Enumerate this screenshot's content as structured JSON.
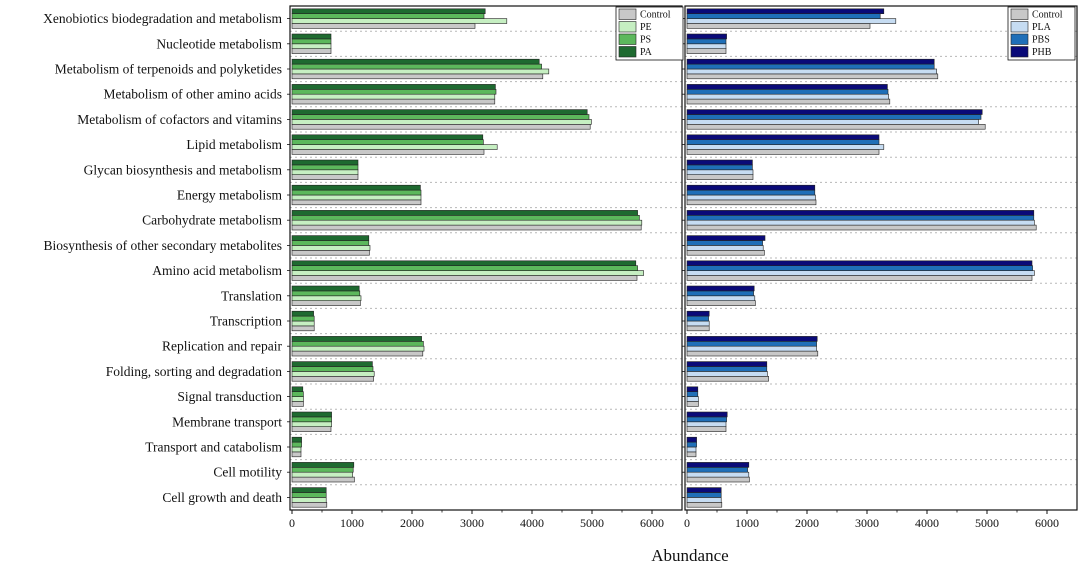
{
  "chart_data": [
    {
      "type": "bar",
      "orientation": "horizontal",
      "panel": "left",
      "categories": [
        "Xenobiotics biodegradation and metabolism",
        "Nucleotide metabolism",
        "Metabolism of terpenoids and polyketides",
        "Metabolism of other amino acids",
        "Metabolism of cofactors and vitamins",
        "Lipid metabolism",
        "Glycan biosynthesis and metabolism",
        "Energy metabolism",
        "Carbohydrate metabolism",
        "Biosynthesis of other secondary metabolites",
        "Amino acid metabolism",
        "Translation",
        "Transcription",
        "Replication and repair",
        "Folding, sorting and degradation",
        "Signal transduction",
        "Membrane transport",
        "Transport and catabolism",
        "Cell motility",
        "Cell growth and death"
      ],
      "series": [
        {
          "name": "Control",
          "color": "#c8c8c8",
          "values": [
            3050,
            650,
            4180,
            3380,
            4970,
            3200,
            1100,
            2150,
            5820,
            1290,
            5750,
            1140,
            370,
            2180,
            1360,
            190,
            650,
            150,
            1040,
            580
          ]
        },
        {
          "name": "PE",
          "color": "#c6efc2",
          "values": [
            3580,
            650,
            4280,
            3380,
            4990,
            3420,
            1100,
            2150,
            5830,
            1300,
            5860,
            1150,
            370,
            2200,
            1370,
            190,
            660,
            150,
            1010,
            570
          ]
        },
        {
          "name": "PS",
          "color": "#5cb85c",
          "values": [
            3200,
            650,
            4160,
            3400,
            4950,
            3190,
            1100,
            2150,
            5790,
            1280,
            5760,
            1130,
            370,
            2190,
            1350,
            190,
            660,
            160,
            1020,
            570
          ]
        },
        {
          "name": "PA",
          "color": "#1e6a30",
          "values": [
            3220,
            650,
            4120,
            3390,
            4920,
            3180,
            1100,
            2140,
            5760,
            1280,
            5730,
            1120,
            360,
            2160,
            1340,
            180,
            660,
            160,
            1030,
            570
          ]
        }
      ],
      "xlim": [
        0,
        6500
      ],
      "xticks": [
        "0",
        "1000",
        "2000",
        "3000",
        "4000",
        "5000",
        "6000"
      ],
      "legend_position": "top-right"
    },
    {
      "type": "bar",
      "orientation": "horizontal",
      "panel": "right",
      "series": [
        {
          "name": "Control",
          "color": "#c8c8c8",
          "values": [
            3050,
            650,
            4180,
            3380,
            4970,
            3200,
            1100,
            2150,
            5820,
            1290,
            5750,
            1140,
            370,
            2180,
            1360,
            190,
            650,
            150,
            1040,
            580
          ]
        },
        {
          "name": "PLA",
          "color": "#c6dcf2",
          "values": [
            3480,
            650,
            4160,
            3360,
            4860,
            3280,
            1100,
            2140,
            5790,
            1270,
            5790,
            1130,
            370,
            2160,
            1340,
            190,
            650,
            150,
            1030,
            570
          ]
        },
        {
          "name": "PBS",
          "color": "#1f6fb8",
          "values": [
            3220,
            650,
            4120,
            3350,
            4900,
            3200,
            1090,
            2130,
            5780,
            1260,
            5760,
            1110,
            360,
            2160,
            1330,
            180,
            660,
            160,
            1010,
            570
          ]
        },
        {
          "name": "PHB",
          "color": "#0a0a78",
          "values": [
            3280,
            660,
            4120,
            3340,
            4920,
            3200,
            1090,
            2130,
            5780,
            1300,
            5750,
            1120,
            370,
            2170,
            1330,
            180,
            670,
            160,
            1030,
            570
          ]
        }
      ],
      "xlim": [
        0,
        6500
      ],
      "xticks": [
        "0",
        "1000",
        "2000",
        "3000",
        "4000",
        "5000",
        "6000"
      ],
      "legend_position": "top-right"
    }
  ],
  "xlabel": "Abundance"
}
